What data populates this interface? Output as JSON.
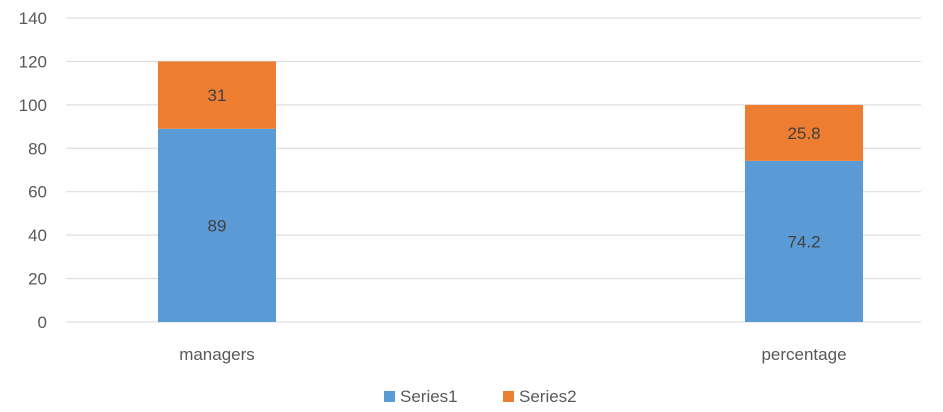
{
  "chart_data": {
    "type": "bar",
    "stacked": true,
    "categories": [
      "managers",
      "percentage"
    ],
    "series": [
      {
        "name": "Series1",
        "values": [
          89,
          74.2
        ],
        "color": "#5b9bd5"
      },
      {
        "name": "Series2",
        "values": [
          31,
          25.8
        ],
        "color": "#ed7d31"
      }
    ],
    "ylim": [
      0,
      140
    ],
    "yticks": [
      0,
      20,
      40,
      60,
      80,
      100,
      120,
      140
    ],
    "grid": true,
    "legend": "bottom"
  }
}
